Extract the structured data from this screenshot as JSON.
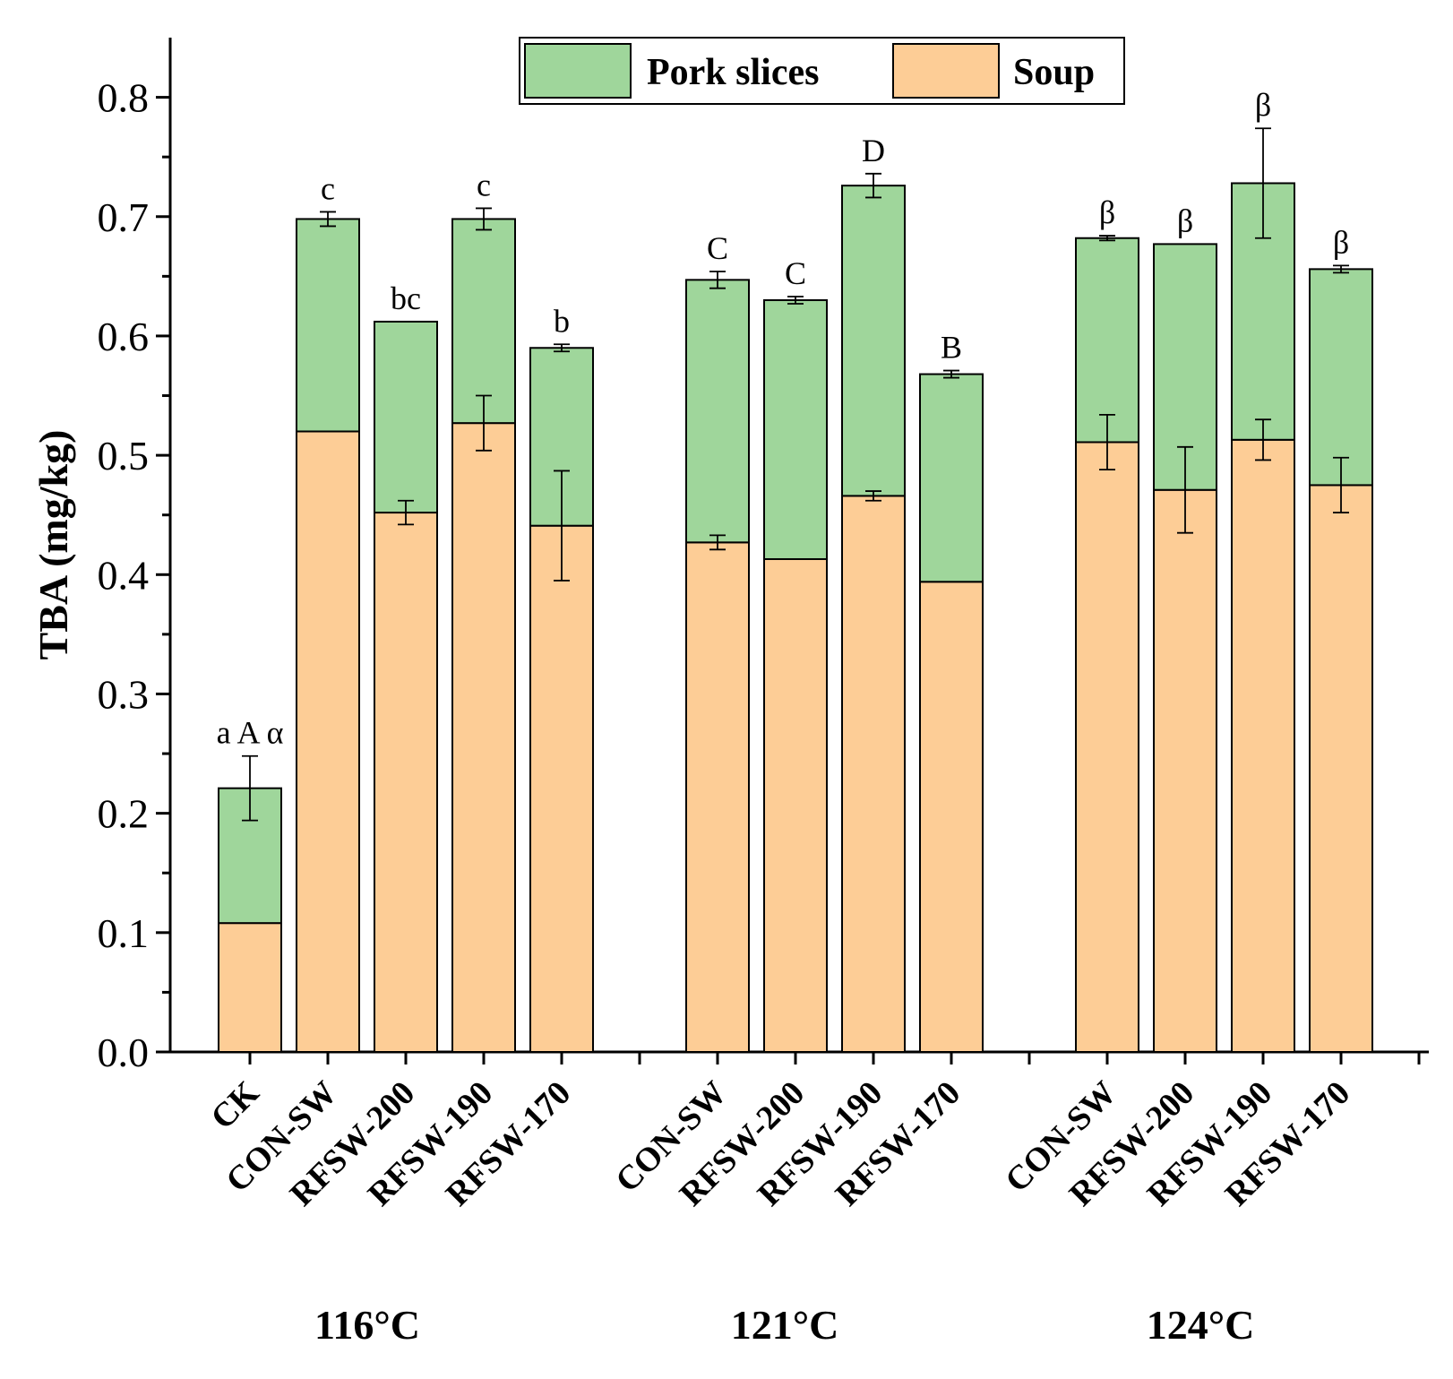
{
  "chart_data": {
    "type": "bar",
    "stacked": true,
    "ylabel": "TBA (mg/kg)",
    "ylim": [
      0,
      0.85
    ],
    "yticks": [
      "0.0",
      "0.1",
      "0.2",
      "0.3",
      "0.4",
      "0.5",
      "0.6",
      "0.7",
      "0.8"
    ],
    "legend": {
      "position": "top-center",
      "entries": [
        {
          "name": "Pork slices",
          "color": "#9fd69b"
        },
        {
          "name": "Soup",
          "color": "#fdcd96"
        }
      ]
    },
    "groups": [
      {
        "label": "116°C",
        "bars": [
          {
            "category": "CK",
            "soup": 0.108,
            "soup_err": 0,
            "total": 0.221,
            "total_err": 0.027,
            "sig": "a A α"
          },
          {
            "category": "CON-SW",
            "soup": 0.52,
            "soup_err": 0,
            "total": 0.698,
            "total_err": 0.006,
            "sig": "c"
          },
          {
            "category": "RFSW-200",
            "soup": 0.452,
            "soup_err": 0.01,
            "total": 0.612,
            "total_err": 0,
            "sig": "bc"
          },
          {
            "category": "RFSW-190",
            "soup": 0.527,
            "soup_err": 0.023,
            "total": 0.698,
            "total_err": 0.009,
            "sig": "c"
          },
          {
            "category": "RFSW-170",
            "soup": 0.441,
            "soup_err": 0.046,
            "total": 0.59,
            "total_err": 0.003,
            "sig": "b"
          }
        ]
      },
      {
        "label": "121°C",
        "bars": [
          {
            "category": "CON-SW",
            "soup": 0.427,
            "soup_err": 0.006,
            "total": 0.647,
            "total_err": 0.007,
            "sig": "C"
          },
          {
            "category": "RFSW-200",
            "soup": 0.413,
            "soup_err": 0,
            "total": 0.63,
            "total_err": 0.003,
            "sig": "C"
          },
          {
            "category": "RFSW-190",
            "soup": 0.466,
            "soup_err": 0.004,
            "total": 0.726,
            "total_err": 0.01,
            "sig": "D"
          },
          {
            "category": "RFSW-170",
            "soup": 0.394,
            "soup_err": 0,
            "total": 0.568,
            "total_err": 0.003,
            "sig": "B"
          }
        ]
      },
      {
        "label": "124°C",
        "bars": [
          {
            "category": "CON-SW",
            "soup": 0.511,
            "soup_err": 0.023,
            "total": 0.682,
            "total_err": 0.002,
            "sig": "β"
          },
          {
            "category": "RFSW-200",
            "soup": 0.471,
            "soup_err": 0.036,
            "total": 0.677,
            "total_err": 0,
            "sig": "β"
          },
          {
            "category": "RFSW-190",
            "soup": 0.513,
            "soup_err": 0.017,
            "total": 0.728,
            "total_err": 0.046,
            "sig": "β"
          },
          {
            "category": "RFSW-170",
            "soup": 0.475,
            "soup_err": 0.023,
            "total": 0.656,
            "total_err": 0.003,
            "sig": "β"
          }
        ]
      }
    ]
  }
}
